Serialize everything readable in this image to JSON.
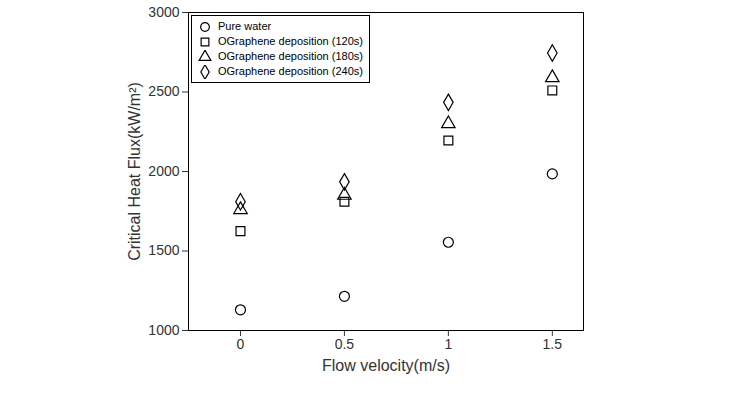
{
  "chart_data": {
    "type": "scatter",
    "xlabel": "Flow velocity(m/s)",
    "ylabel": "Critical Heat Flux(kW/m²)",
    "x": [
      0,
      0.5,
      1,
      1.5
    ],
    "series": [
      {
        "name": "Pure water",
        "color": "#000000",
        "marker": "circle",
        "values": [
          1130,
          1215,
          1555,
          1985
        ]
      },
      {
        "name": "OGraphene deposition (120s)",
        "color": "#000000",
        "marker": "square",
        "values": [
          1625,
          1810,
          2195,
          2510
        ]
      },
      {
        "name": "OGraphene deposition (180s)",
        "color": "#000000",
        "marker": "triangle",
        "values": [
          1760,
          1850,
          2300,
          2590
        ]
      },
      {
        "name": "OGraphene deposition (240s)",
        "color": "#000000",
        "marker": "diamond",
        "values": [
          1810,
          1935,
          2435,
          2745
        ]
      }
    ],
    "xlim": [
      -0.25,
      1.65
    ],
    "xticks": [
      0,
      0.5,
      1,
      1.5
    ],
    "ylim": [
      1000,
      3000
    ],
    "yticks": [
      1000,
      1500,
      2000,
      2500,
      3000
    ],
    "legend": "upper left",
    "grid": false
  }
}
